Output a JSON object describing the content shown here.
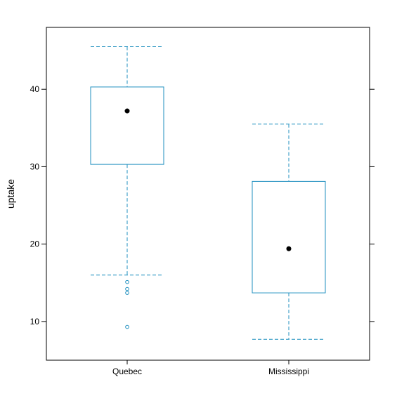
{
  "chart_data": {
    "type": "box",
    "title": "",
    "xlabel": "",
    "ylabel": "uptake",
    "categories": [
      "Quebec",
      "Mississippi"
    ],
    "ylim": [
      5,
      48
    ],
    "yticks": [
      10,
      20,
      30,
      40
    ],
    "grid": false,
    "colors": {
      "box": "#1f8fbf",
      "median_dot": "#000000",
      "frame": "#000000",
      "background": "#ffffff"
    },
    "boxes": [
      {
        "category": "Quebec",
        "whisker_low": 16.0,
        "q1": 30.3,
        "median": 37.2,
        "q3": 40.3,
        "whisker_high": 45.5,
        "outliers": [
          15.1,
          14.2,
          13.7,
          9.3
        ]
      },
      {
        "category": "Mississippi",
        "whisker_low": 7.7,
        "q1": 13.7,
        "median": 19.4,
        "q3": 28.1,
        "whisker_high": 35.5,
        "outliers": []
      }
    ]
  }
}
